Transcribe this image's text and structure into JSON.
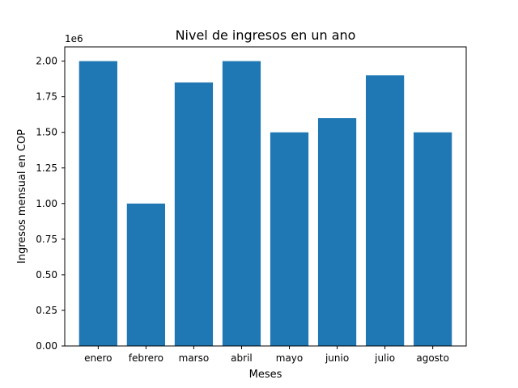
{
  "chart_data": {
    "type": "bar",
    "title": "Nivel de ingresos en un ano",
    "xlabel": "Meses",
    "ylabel": "Ingresos mensual en COP",
    "categories": [
      "enero",
      "febrero",
      "marso",
      "abril",
      "mayo",
      "junio",
      "julio",
      "agosto"
    ],
    "values": [
      2000000,
      1000000,
      1850000,
      2000000,
      1500000,
      1600000,
      1900000,
      1500000
    ],
    "ylim": [
      0,
      2100000
    ],
    "yticks": [
      0,
      250000,
      500000,
      750000,
      1000000,
      1250000,
      1500000,
      1750000,
      2000000
    ],
    "ytick_labels": [
      "0.00",
      "0.25",
      "0.50",
      "0.75",
      "1.00",
      "1.25",
      "1.50",
      "1.75",
      "2.00"
    ],
    "y_offset_label": "1e6",
    "bar_color": "#1f77b4",
    "grid": false,
    "legend": "none"
  }
}
